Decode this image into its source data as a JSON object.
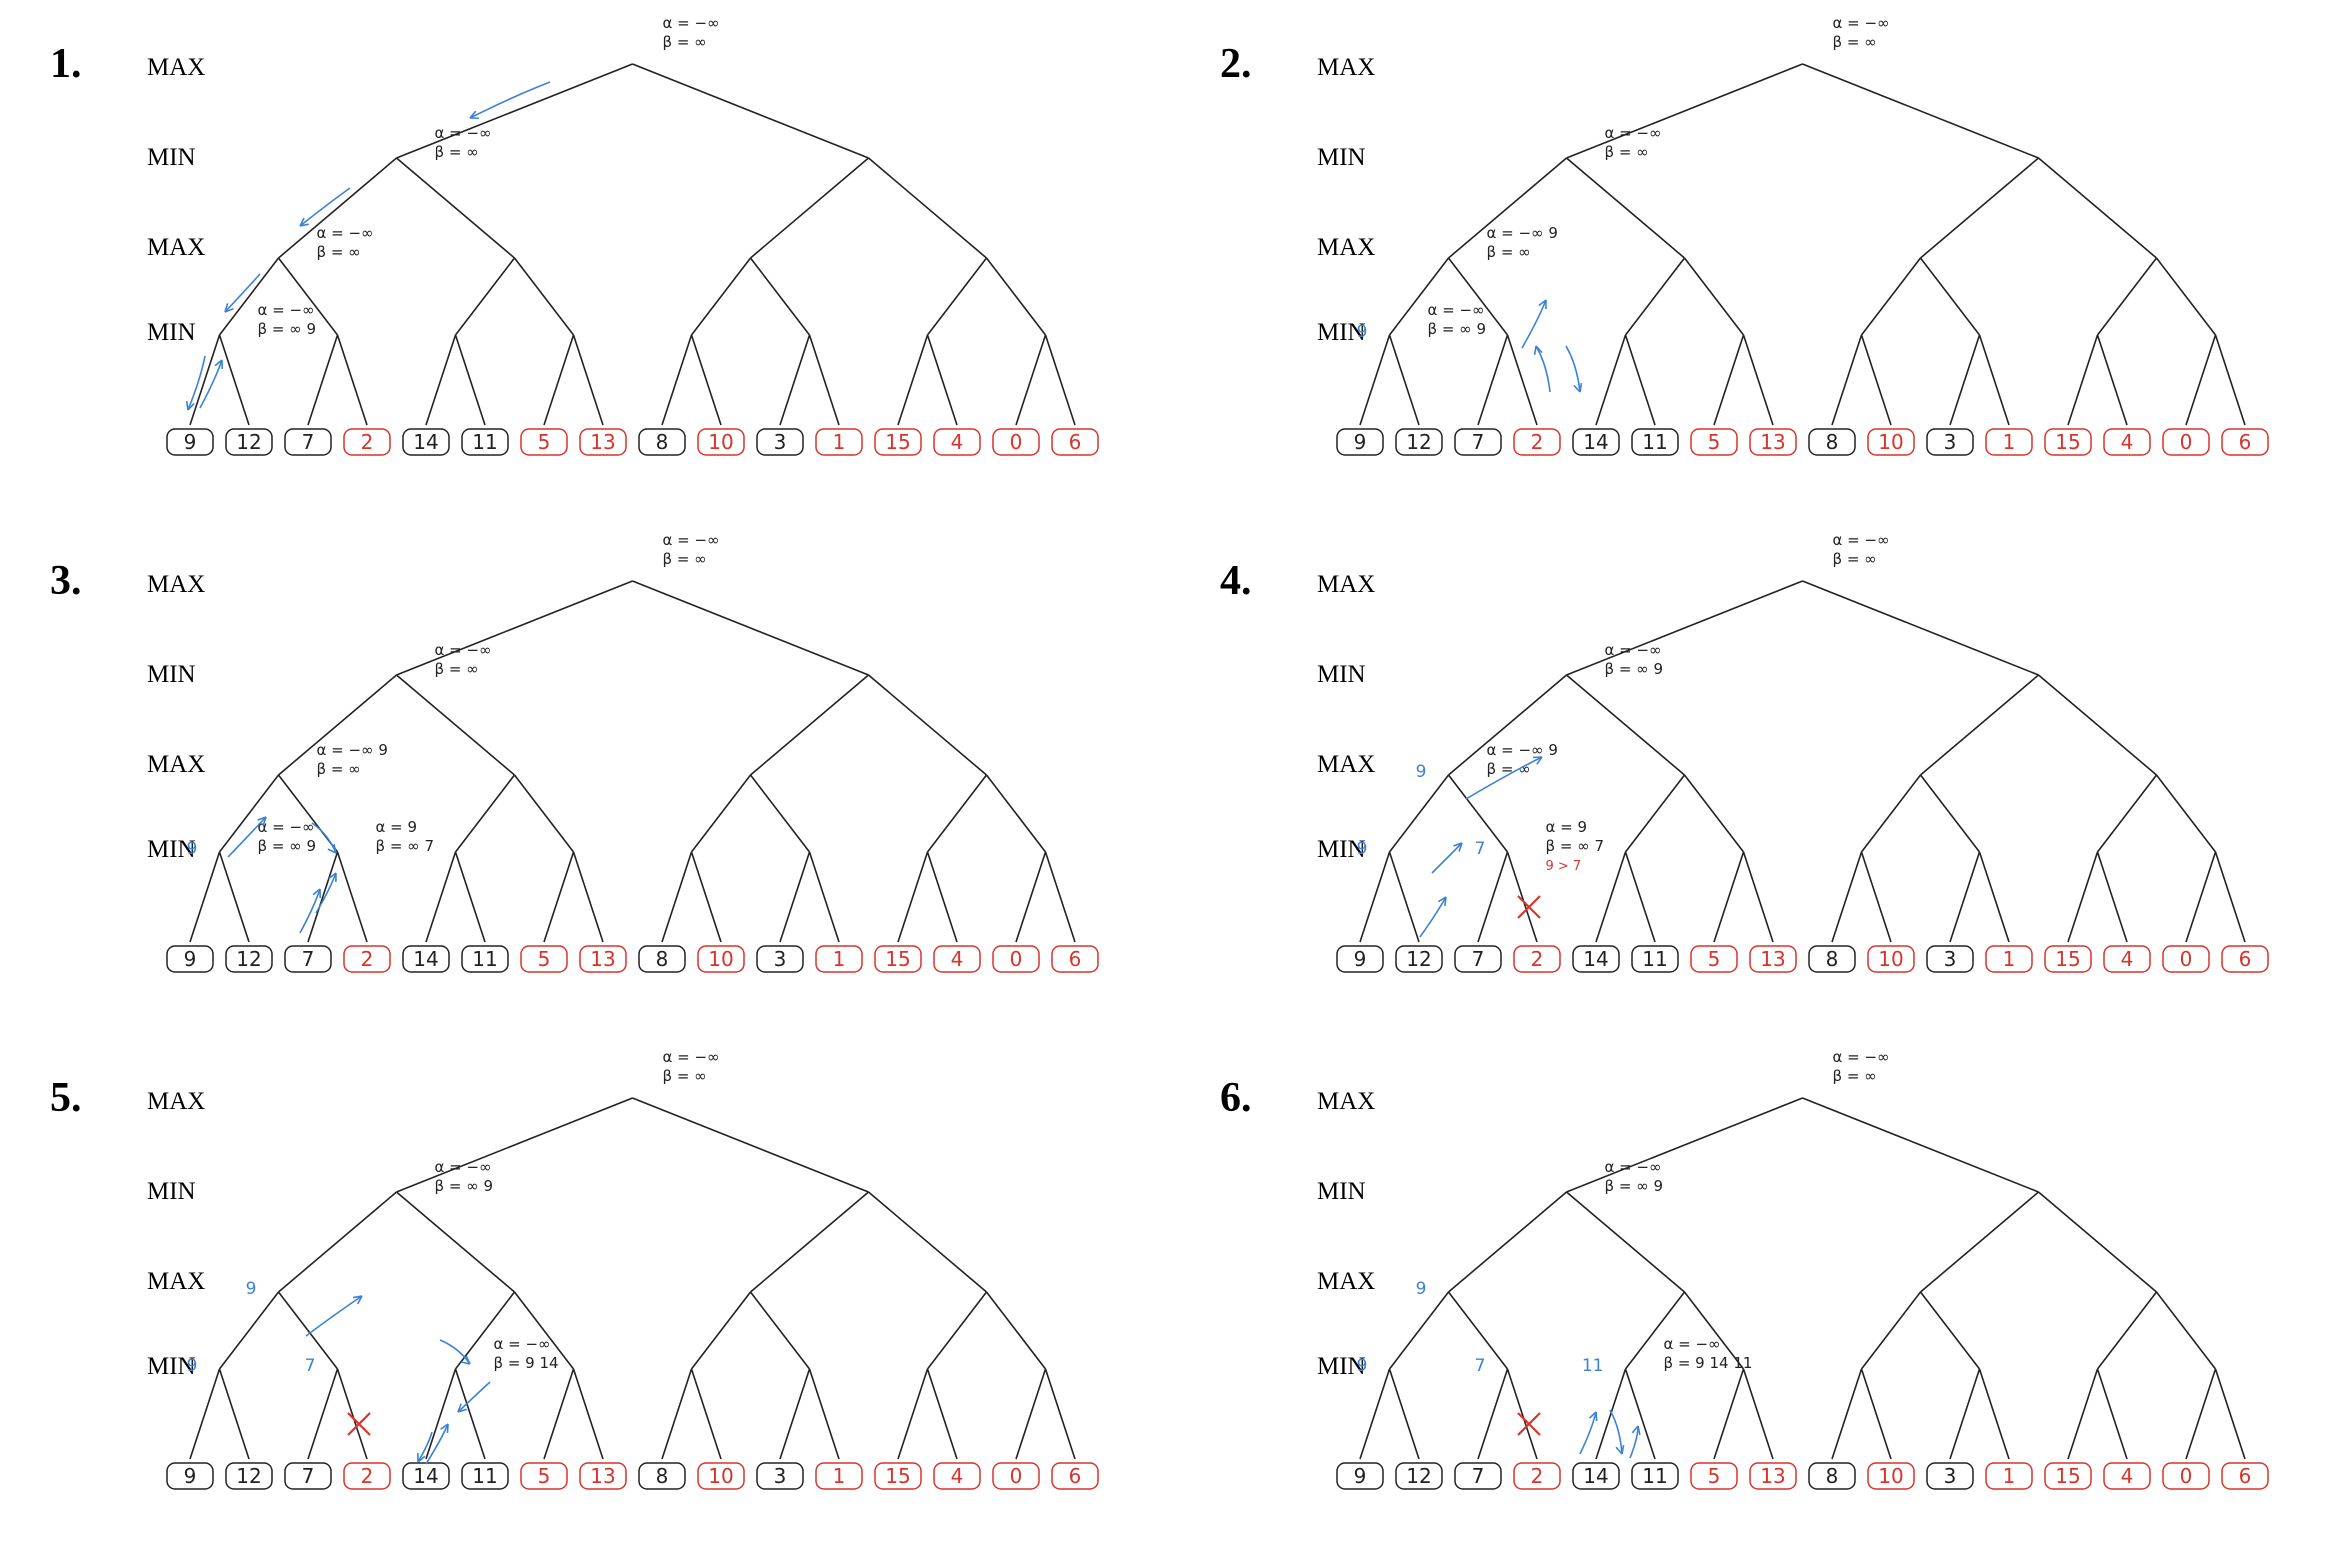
{
  "colors": {
    "ink": "#222222",
    "annotation_blue": "#3b82d6",
    "pruned_red": "#d9342b",
    "leaf_red": "#d9342b",
    "leaf_black": "#222222"
  },
  "levels": [
    "MAX",
    "MIN",
    "MAX",
    "MIN"
  ],
  "leaves": [
    {
      "value": "9",
      "color": "black"
    },
    {
      "value": "12",
      "color": "black"
    },
    {
      "value": "7",
      "color": "black"
    },
    {
      "value": "2",
      "color": "red"
    },
    {
      "value": "14",
      "color": "black"
    },
    {
      "value": "11",
      "color": "black"
    },
    {
      "value": "5",
      "color": "red"
    },
    {
      "value": "13",
      "color": "red"
    },
    {
      "value": "8",
      "color": "black"
    },
    {
      "value": "10",
      "color": "red"
    },
    {
      "value": "3",
      "color": "black"
    },
    {
      "value": "1",
      "color": "red"
    },
    {
      "value": "15",
      "color": "red"
    },
    {
      "value": "4",
      "color": "red"
    },
    {
      "value": "0",
      "color": "red"
    },
    {
      "value": "6",
      "color": "red"
    }
  ],
  "panels": [
    {
      "number": "1.",
      "annotations": [
        {
          "node": "root",
          "lines": [
            "α = −∞",
            "β = ∞"
          ]
        },
        {
          "node": "min-0",
          "lines": [
            "α = −∞",
            "β = ∞"
          ]
        },
        {
          "node": "max-0",
          "lines": [
            "α = −∞",
            "β = ∞"
          ]
        },
        {
          "node": "min2-0",
          "lines": [
            "α = −∞",
            "β = ∞ 9"
          ]
        }
      ],
      "blue_labels": [],
      "pruned": []
    },
    {
      "number": "2.",
      "annotations": [
        {
          "node": "root",
          "lines": [
            "α = −∞",
            "β = ∞"
          ]
        },
        {
          "node": "min-0",
          "lines": [
            "α = −∞",
            "β = ∞"
          ]
        },
        {
          "node": "max-0",
          "lines": [
            "α = −∞ 9",
            "β = ∞"
          ]
        },
        {
          "node": "min2-0",
          "lines": [
            "α = −∞",
            "β = ∞ 9"
          ]
        }
      ],
      "blue_labels": [
        {
          "node": "min2-0",
          "text": "9"
        }
      ],
      "pruned": []
    },
    {
      "number": "3.",
      "annotations": [
        {
          "node": "root",
          "lines": [
            "α = −∞",
            "β = ∞"
          ]
        },
        {
          "node": "min-0",
          "lines": [
            "α = −∞",
            "β = ∞"
          ]
        },
        {
          "node": "max-0",
          "lines": [
            "α = −∞ 9",
            "β = ∞"
          ]
        },
        {
          "node": "min2-0",
          "lines": [
            "α = −∞",
            "β = ∞ 9"
          ]
        },
        {
          "node": "min2-1",
          "lines": [
            "α = 9",
            "β = ∞ 7"
          ]
        }
      ],
      "blue_labels": [
        {
          "node": "min2-0",
          "text": "9"
        }
      ],
      "pruned": []
    },
    {
      "number": "4.",
      "annotations": [
        {
          "node": "root",
          "lines": [
            "α = −∞",
            "β = ∞"
          ]
        },
        {
          "node": "min-0",
          "lines": [
            "α = −∞",
            "β = ∞ 9"
          ]
        },
        {
          "node": "max-0",
          "lines": [
            "α = −∞ 9",
            "β = ∞"
          ]
        },
        {
          "node": "min2-1",
          "lines": [
            "α = 9",
            "β = ∞ 7",
            "9 > 7"
          ]
        }
      ],
      "blue_labels": [
        {
          "node": "min2-0",
          "text": "9"
        },
        {
          "node": "max-0",
          "text": "9"
        },
        {
          "node": "min2-1",
          "text": "7"
        }
      ],
      "pruned": [
        3
      ]
    },
    {
      "number": "5.",
      "annotations": [
        {
          "node": "root",
          "lines": [
            "α = −∞",
            "β = ∞"
          ]
        },
        {
          "node": "min-0",
          "lines": [
            "α = −∞",
            "β = ∞ 9"
          ]
        },
        {
          "node": "min2-2",
          "lines": [
            "α = −∞",
            "β = 9 14"
          ]
        }
      ],
      "blue_labels": [
        {
          "node": "min2-0",
          "text": "9"
        },
        {
          "node": "max-0",
          "text": "9"
        },
        {
          "node": "min2-1",
          "text": "7"
        }
      ],
      "pruned": [
        3
      ]
    },
    {
      "number": "6.",
      "annotations": [
        {
          "node": "root",
          "lines": [
            "α = −∞",
            "β = ∞"
          ]
        },
        {
          "node": "min-0",
          "lines": [
            "α = −∞",
            "β = ∞ 9"
          ]
        },
        {
          "node": "min2-2",
          "lines": [
            "α = −∞",
            "β = 9 14 11"
          ]
        }
      ],
      "blue_labels": [
        {
          "node": "min2-0",
          "text": "9"
        },
        {
          "node": "max-0",
          "text": "9"
        },
        {
          "node": "min2-1",
          "text": "7"
        },
        {
          "node": "min2-2",
          "text": "11"
        }
      ],
      "pruned": [
        3
      ]
    }
  ]
}
